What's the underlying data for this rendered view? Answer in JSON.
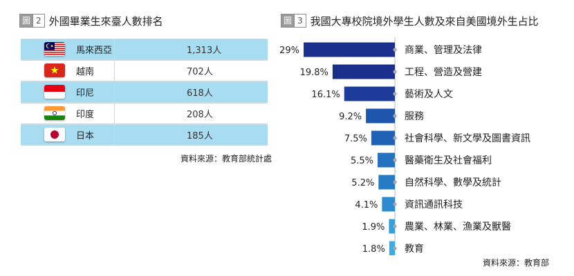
{
  "figure2": {
    "badge_word": "圖",
    "badge_num": "2",
    "title": "外國畢業生來臺人數排名",
    "rows": [
      {
        "country": "馬來西亞",
        "value": "1,313人",
        "flag": "malaysia-flag-icon"
      },
      {
        "country": "越南",
        "value": "702人",
        "flag": "vietnam-flag-icon"
      },
      {
        "country": "印尼",
        "value": "618人",
        "flag": "indonesia-flag-icon"
      },
      {
        "country": "印度",
        "value": "208人",
        "flag": "india-flag-icon"
      },
      {
        "country": "日本",
        "value": "185人",
        "flag": "japan-flag-icon"
      }
    ],
    "source": "資料來源：教育部統計處"
  },
  "figure3": {
    "badge_word": "圖",
    "badge_num": "3",
    "title": "我國大專校院境外學生人數及來自美國境外生占比",
    "source": "資料來源：教育部"
  },
  "chart_data": {
    "type": "bar",
    "orientation": "horizontal",
    "categories": [
      "商業、管理及法律",
      "工程、營造及營建",
      "藝術及人文",
      "服務",
      "社會科學、新文學及圖書資訊",
      "醫藥衛生及社會福利",
      "自然科學、數學及統計",
      "資訊通訊科技",
      "農業、林業、漁業及獸醫",
      "教育"
    ],
    "values": [
      29,
      19.8,
      16.1,
      9.2,
      7.5,
      5.5,
      5.2,
      4.1,
      1.9,
      1.8
    ],
    "value_labels": [
      "29%",
      "19.8%",
      "16.1%",
      "9.2%",
      "7.5%",
      "5.5%",
      "5.2%",
      "4.1%",
      "1.9%",
      "1.8%"
    ],
    "colors": [
      "#1a2e8c",
      "#1a2e8c",
      "#1d3c9a",
      "#1e55ad",
      "#1f62b6",
      "#2372bd",
      "#267cc4",
      "#2c8ccf",
      "#34a1dc",
      "#3aaee4"
    ],
    "grid": false,
    "legend": "none"
  }
}
